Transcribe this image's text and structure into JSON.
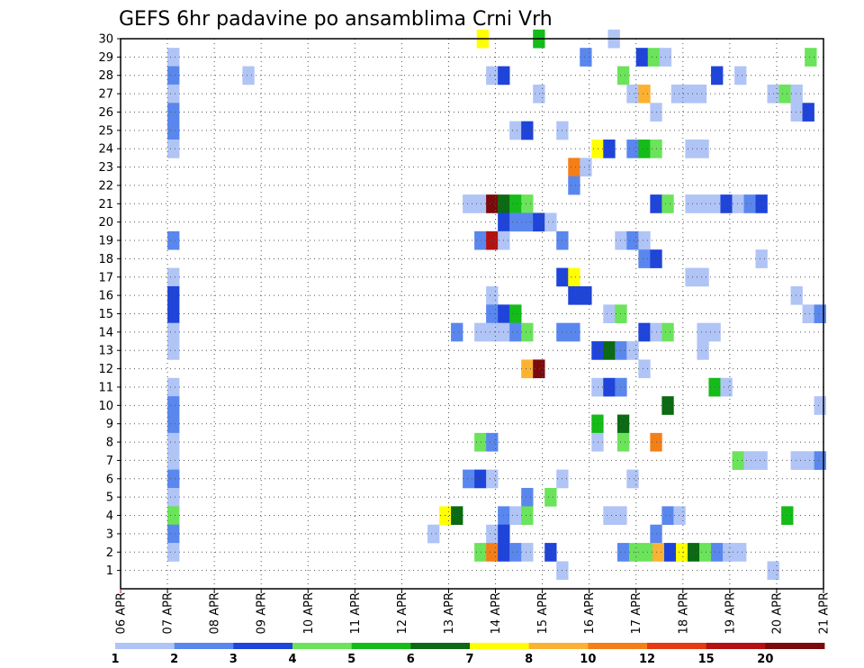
{
  "chart_data": {
    "type": "heatmap",
    "title": "GEFS 6hr padavine po ansamblima Crni Vrh",
    "xlabel": "",
    "ylabel": "",
    "x_ticks": [
      "06 APR",
      "07 APR",
      "08 APR",
      "09 APR",
      "10 APR",
      "11 APR",
      "12 APR",
      "13 APR",
      "14 APR",
      "15 APR",
      "16 APR",
      "17 APR",
      "18 APR",
      "19 APR",
      "20 APR",
      "21 APR"
    ],
    "xlim_days": [
      6,
      21
    ],
    "y_ticks": [
      1,
      2,
      3,
      4,
      5,
      6,
      7,
      8,
      9,
      10,
      11,
      12,
      13,
      14,
      15,
      16,
      17,
      18,
      19,
      20,
      21,
      22,
      23,
      24,
      25,
      26,
      27,
      28,
      29,
      30
    ],
    "ylim": [
      0,
      30
    ],
    "grid": true,
    "colorbar": {
      "labels": [
        "1",
        "2",
        "3",
        "4",
        "5",
        "6",
        "7",
        "8",
        "10",
        "12",
        "15",
        "20"
      ],
      "colors": [
        "#b0c4f6",
        "#5a87ee",
        "#1f44d9",
        "#6be35a",
        "#15bb19",
        "#0b6a13",
        "#ffff00",
        "#fbb233",
        "#f57f17",
        "#e63a12",
        "#b31112",
        "#7b0a0c"
      ]
    },
    "cell_width_days": 0.25,
    "cells": [
      {
        "m": 30,
        "d": 13.6,
        "v": 7
      },
      {
        "m": 30,
        "d": 14.8,
        "v": 5
      },
      {
        "m": 30,
        "d": 16.4,
        "v": 1
      },
      {
        "m": 29,
        "d": 7.0,
        "v": 1
      },
      {
        "m": 29,
        "d": 15.8,
        "v": 2
      },
      {
        "m": 29,
        "d": 17.0,
        "v": 3
      },
      {
        "m": 29,
        "d": 17.25,
        "v": 4
      },
      {
        "m": 29,
        "d": 17.5,
        "v": 1
      },
      {
        "m": 29,
        "d": 20.6,
        "v": 4
      },
      {
        "m": 28,
        "d": 7.0,
        "v": 2
      },
      {
        "m": 28,
        "d": 8.6,
        "v": 1
      },
      {
        "m": 28,
        "d": 13.8,
        "v": 1
      },
      {
        "m": 28,
        "d": 14.05,
        "v": 3
      },
      {
        "m": 28,
        "d": 16.6,
        "v": 4
      },
      {
        "m": 28,
        "d": 18.6,
        "v": 3
      },
      {
        "m": 28,
        "d": 19.1,
        "v": 1
      },
      {
        "m": 27,
        "d": 7.0,
        "v": 1
      },
      {
        "m": 27,
        "d": 14.8,
        "v": 1
      },
      {
        "m": 27,
        "d": 16.8,
        "v": 1
      },
      {
        "m": 27,
        "d": 17.05,
        "v": 9
      },
      {
        "m": 27,
        "d": 17.75,
        "v": 1
      },
      {
        "m": 27,
        "d": 18.0,
        "v": 1
      },
      {
        "m": 27,
        "d": 18.25,
        "v": 1
      },
      {
        "m": 27,
        "d": 19.8,
        "v": 1
      },
      {
        "m": 27,
        "d": 20.05,
        "v": 4
      },
      {
        "m": 27,
        "d": 20.3,
        "v": 1
      },
      {
        "m": 26,
        "d": 7.0,
        "v": 2
      },
      {
        "m": 26,
        "d": 17.3,
        "v": 1
      },
      {
        "m": 26,
        "d": 20.3,
        "v": 1
      },
      {
        "m": 26,
        "d": 20.55,
        "v": 3
      },
      {
        "m": 25,
        "d": 7.0,
        "v": 2
      },
      {
        "m": 25,
        "d": 14.3,
        "v": 1
      },
      {
        "m": 25,
        "d": 14.55,
        "v": 3
      },
      {
        "m": 25,
        "d": 15.3,
        "v": 1
      },
      {
        "m": 24,
        "d": 7.0,
        "v": 1
      },
      {
        "m": 24,
        "d": 16.05,
        "v": 7
      },
      {
        "m": 24,
        "d": 16.3,
        "v": 3
      },
      {
        "m": 24,
        "d": 16.8,
        "v": 2
      },
      {
        "m": 24,
        "d": 17.05,
        "v": 5
      },
      {
        "m": 24,
        "d": 17.3,
        "v": 4
      },
      {
        "m": 24,
        "d": 18.05,
        "v": 1
      },
      {
        "m": 24,
        "d": 18.3,
        "v": 1
      },
      {
        "m": 23,
        "d": 15.55,
        "v": 10
      },
      {
        "m": 23,
        "d": 15.8,
        "v": 1
      },
      {
        "m": 22,
        "d": 15.55,
        "v": 2
      },
      {
        "m": 21,
        "d": 13.3,
        "v": 1
      },
      {
        "m": 21,
        "d": 13.55,
        "v": 1
      },
      {
        "m": 21,
        "d": 13.8,
        "v": 20
      },
      {
        "m": 21,
        "d": 14.05,
        "v": 6
      },
      {
        "m": 21,
        "d": 14.3,
        "v": 5
      },
      {
        "m": 21,
        "d": 14.55,
        "v": 4
      },
      {
        "m": 21,
        "d": 17.3,
        "v": 3
      },
      {
        "m": 21,
        "d": 17.55,
        "v": 4
      },
      {
        "m": 21,
        "d": 18.05,
        "v": 1
      },
      {
        "m": 21,
        "d": 18.3,
        "v": 1
      },
      {
        "m": 21,
        "d": 18.55,
        "v": 1
      },
      {
        "m": 21,
        "d": 18.8,
        "v": 3
      },
      {
        "m": 21,
        "d": 19.05,
        "v": 1
      },
      {
        "m": 21,
        "d": 19.3,
        "v": 2
      },
      {
        "m": 21,
        "d": 19.55,
        "v": 3
      },
      {
        "m": 20,
        "d": 14.05,
        "v": 3
      },
      {
        "m": 20,
        "d": 14.3,
        "v": 2
      },
      {
        "m": 20,
        "d": 14.55,
        "v": 2
      },
      {
        "m": 20,
        "d": 14.8,
        "v": 3
      },
      {
        "m": 20,
        "d": 15.05,
        "v": 1
      },
      {
        "m": 19,
        "d": 7.0,
        "v": 2
      },
      {
        "m": 19,
        "d": 13.55,
        "v": 2
      },
      {
        "m": 19,
        "d": 13.8,
        "v": 15
      },
      {
        "m": 19,
        "d": 14.05,
        "v": 1
      },
      {
        "m": 19,
        "d": 15.3,
        "v": 2
      },
      {
        "m": 19,
        "d": 16.55,
        "v": 1
      },
      {
        "m": 19,
        "d": 16.8,
        "v": 2
      },
      {
        "m": 19,
        "d": 17.05,
        "v": 1
      },
      {
        "m": 18,
        "d": 17.05,
        "v": 2
      },
      {
        "m": 18,
        "d": 17.3,
        "v": 3
      },
      {
        "m": 18,
        "d": 19.55,
        "v": 1
      },
      {
        "m": 17,
        "d": 7.0,
        "v": 1
      },
      {
        "m": 17,
        "d": 15.3,
        "v": 3
      },
      {
        "m": 17,
        "d": 15.55,
        "v": 7
      },
      {
        "m": 17,
        "d": 18.05,
        "v": 1
      },
      {
        "m": 17,
        "d": 18.3,
        "v": 1
      },
      {
        "m": 16,
        "d": 7.0,
        "v": 3
      },
      {
        "m": 16,
        "d": 13.8,
        "v": 1
      },
      {
        "m": 16,
        "d": 15.55,
        "v": 3
      },
      {
        "m": 16,
        "d": 15.8,
        "v": 3
      },
      {
        "m": 16,
        "d": 20.3,
        "v": 1
      },
      {
        "m": 15,
        "d": 7.0,
        "v": 3
      },
      {
        "m": 15,
        "d": 13.8,
        "v": 2
      },
      {
        "m": 15,
        "d": 14.05,
        "v": 3
      },
      {
        "m": 15,
        "d": 14.3,
        "v": 5
      },
      {
        "m": 15,
        "d": 16.3,
        "v": 1
      },
      {
        "m": 15,
        "d": 16.55,
        "v": 4
      },
      {
        "m": 15,
        "d": 20.55,
        "v": 1
      },
      {
        "m": 15,
        "d": 20.8,
        "v": 2
      },
      {
        "m": 14,
        "d": 7.0,
        "v": 1
      },
      {
        "m": 14,
        "d": 13.05,
        "v": 2
      },
      {
        "m": 14,
        "d": 13.55,
        "v": 1
      },
      {
        "m": 14,
        "d": 13.8,
        "v": 1
      },
      {
        "m": 14,
        "d": 14.05,
        "v": 1
      },
      {
        "m": 14,
        "d": 14.3,
        "v": 2
      },
      {
        "m": 14,
        "d": 14.55,
        "v": 4
      },
      {
        "m": 14,
        "d": 15.3,
        "v": 2
      },
      {
        "m": 14,
        "d": 15.55,
        "v": 2
      },
      {
        "m": 14,
        "d": 17.05,
        "v": 3
      },
      {
        "m": 14,
        "d": 17.3,
        "v": 1
      },
      {
        "m": 14,
        "d": 17.55,
        "v": 4
      },
      {
        "m": 14,
        "d": 18.3,
        "v": 1
      },
      {
        "m": 14,
        "d": 18.55,
        "v": 1
      },
      {
        "m": 13,
        "d": 7.0,
        "v": 1
      },
      {
        "m": 13,
        "d": 16.05,
        "v": 3
      },
      {
        "m": 13,
        "d": 16.3,
        "v": 6
      },
      {
        "m": 13,
        "d": 16.55,
        "v": 2
      },
      {
        "m": 13,
        "d": 16.8,
        "v": 1
      },
      {
        "m": 13,
        "d": 18.3,
        "v": 1
      },
      {
        "m": 12,
        "d": 14.55,
        "v": 9
      },
      {
        "m": 12,
        "d": 14.8,
        "v": 20
      },
      {
        "m": 12,
        "d": 17.05,
        "v": 1
      },
      {
        "m": 11,
        "d": 7.0,
        "v": 1
      },
      {
        "m": 11,
        "d": 16.05,
        "v": 1
      },
      {
        "m": 11,
        "d": 16.3,
        "v": 3
      },
      {
        "m": 11,
        "d": 16.55,
        "v": 2
      },
      {
        "m": 11,
        "d": 18.55,
        "v": 5
      },
      {
        "m": 11,
        "d": 18.8,
        "v": 1
      },
      {
        "m": 10,
        "d": 7.0,
        "v": 2
      },
      {
        "m": 10,
        "d": 17.55,
        "v": 6
      },
      {
        "m": 10,
        "d": 20.8,
        "v": 1
      },
      {
        "m": 9,
        "d": 7.0,
        "v": 2
      },
      {
        "m": 9,
        "d": 16.05,
        "v": 5
      },
      {
        "m": 9,
        "d": 16.6,
        "v": 6
      },
      {
        "m": 8,
        "d": 7.0,
        "v": 1
      },
      {
        "m": 8,
        "d": 13.55,
        "v": 4
      },
      {
        "m": 8,
        "d": 13.8,
        "v": 2
      },
      {
        "m": 8,
        "d": 16.05,
        "v": 1
      },
      {
        "m": 8,
        "d": 16.6,
        "v": 4
      },
      {
        "m": 8,
        "d": 17.3,
        "v": 10
      },
      {
        "m": 7,
        "d": 7.0,
        "v": 1
      },
      {
        "m": 7,
        "d": 19.05,
        "v": 4
      },
      {
        "m": 7,
        "d": 19.3,
        "v": 1
      },
      {
        "m": 7,
        "d": 19.55,
        "v": 1
      },
      {
        "m": 7,
        "d": 20.3,
        "v": 1
      },
      {
        "m": 7,
        "d": 20.55,
        "v": 1
      },
      {
        "m": 7,
        "d": 20.8,
        "v": 2
      },
      {
        "m": 6,
        "d": 7.0,
        "v": 2
      },
      {
        "m": 6,
        "d": 13.3,
        "v": 2
      },
      {
        "m": 6,
        "d": 13.55,
        "v": 3
      },
      {
        "m": 6,
        "d": 13.8,
        "v": 1
      },
      {
        "m": 6,
        "d": 15.3,
        "v": 1
      },
      {
        "m": 6,
        "d": 16.8,
        "v": 1
      },
      {
        "m": 5,
        "d": 7.0,
        "v": 1
      },
      {
        "m": 5,
        "d": 14.55,
        "v": 2
      },
      {
        "m": 5,
        "d": 15.05,
        "v": 4
      },
      {
        "m": 4,
        "d": 7.0,
        "v": 4
      },
      {
        "m": 4,
        "d": 12.8,
        "v": 7
      },
      {
        "m": 4,
        "d": 13.05,
        "v": 6
      },
      {
        "m": 4,
        "d": 14.05,
        "v": 2
      },
      {
        "m": 4,
        "d": 14.3,
        "v": 1
      },
      {
        "m": 4,
        "d": 14.55,
        "v": 4
      },
      {
        "m": 4,
        "d": 16.3,
        "v": 1
      },
      {
        "m": 4,
        "d": 16.55,
        "v": 1
      },
      {
        "m": 4,
        "d": 17.55,
        "v": 2
      },
      {
        "m": 4,
        "d": 17.8,
        "v": 1
      },
      {
        "m": 4,
        "d": 20.1,
        "v": 5
      },
      {
        "m": 3,
        "d": 7.0,
        "v": 2
      },
      {
        "m": 3,
        "d": 12.55,
        "v": 1
      },
      {
        "m": 3,
        "d": 13.8,
        "v": 1
      },
      {
        "m": 3,
        "d": 14.05,
        "v": 3
      },
      {
        "m": 3,
        "d": 17.3,
        "v": 2
      },
      {
        "m": 2,
        "d": 7.0,
        "v": 1
      },
      {
        "m": 2,
        "d": 13.55,
        "v": 4
      },
      {
        "m": 2,
        "d": 13.8,
        "v": 10
      },
      {
        "m": 2,
        "d": 14.05,
        "v": 3
      },
      {
        "m": 2,
        "d": 14.3,
        "v": 2
      },
      {
        "m": 2,
        "d": 14.55,
        "v": 1
      },
      {
        "m": 2,
        "d": 15.05,
        "v": 3
      },
      {
        "m": 2,
        "d": 16.6,
        "v": 2
      },
      {
        "m": 2,
        "d": 16.85,
        "v": 4
      },
      {
        "m": 2,
        "d": 17.1,
        "v": 4
      },
      {
        "m": 2,
        "d": 17.35,
        "v": 9
      },
      {
        "m": 2,
        "d": 17.6,
        "v": 3
      },
      {
        "m": 2,
        "d": 17.85,
        "v": 7
      },
      {
        "m": 2,
        "d": 18.1,
        "v": 6
      },
      {
        "m": 2,
        "d": 18.35,
        "v": 4
      },
      {
        "m": 2,
        "d": 18.6,
        "v": 2
      },
      {
        "m": 2,
        "d": 18.85,
        "v": 1
      },
      {
        "m": 2,
        "d": 19.1,
        "v": 1
      },
      {
        "m": 1,
        "d": 15.3,
        "v": 1
      },
      {
        "m": 1,
        "d": 19.8,
        "v": 1
      }
    ]
  }
}
